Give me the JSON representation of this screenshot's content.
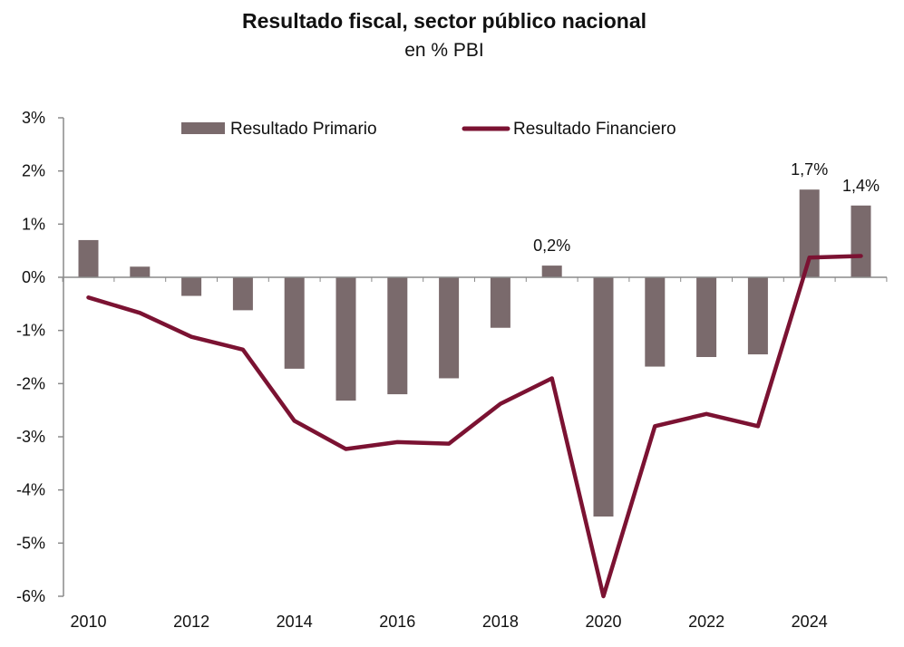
{
  "chart_data": {
    "type": "bar+line",
    "title": "Resultado fiscal, sector público nacional",
    "subtitle": "en % PBI",
    "x": [
      2010,
      2011,
      2012,
      2013,
      2014,
      2015,
      2016,
      2017,
      2018,
      2019,
      2020,
      2021,
      2022,
      2023,
      2024,
      2025
    ],
    "x_tick_labels": [
      "2010",
      "2012",
      "2014",
      "2016",
      "2018",
      "2020",
      "2022",
      "2024"
    ],
    "y_tick_labels": [
      "3%",
      "2%",
      "1%",
      "0%",
      "-1%",
      "-2%",
      "-3%",
      "-4%",
      "-5%",
      "-6%"
    ],
    "ylim": [
      -6,
      3
    ],
    "series": [
      {
        "name": "Resultado Primario",
        "kind": "bar",
        "color": "#7a6a6c",
        "values": [
          0.7,
          0.2,
          -0.35,
          -0.62,
          -1.72,
          -2.32,
          -2.2,
          -1.9,
          -0.95,
          0.22,
          -4.5,
          -1.68,
          -1.5,
          -1.45,
          1.65,
          1.35
        ]
      },
      {
        "name": "Resultado Financiero",
        "kind": "line",
        "color": "#7b1232",
        "values": [
          -0.38,
          -0.67,
          -1.12,
          -1.36,
          -2.7,
          -3.23,
          -3.1,
          -3.13,
          -2.38,
          -1.9,
          -6.0,
          -2.8,
          -2.57,
          -2.8,
          0.37,
          0.4
        ]
      }
    ],
    "annotations": [
      {
        "x": 2019,
        "text": "0,2%"
      },
      {
        "x": 2024,
        "text": "1,7%"
      },
      {
        "x": 2025,
        "text": "1,4%"
      }
    ],
    "legend_position": "top"
  }
}
